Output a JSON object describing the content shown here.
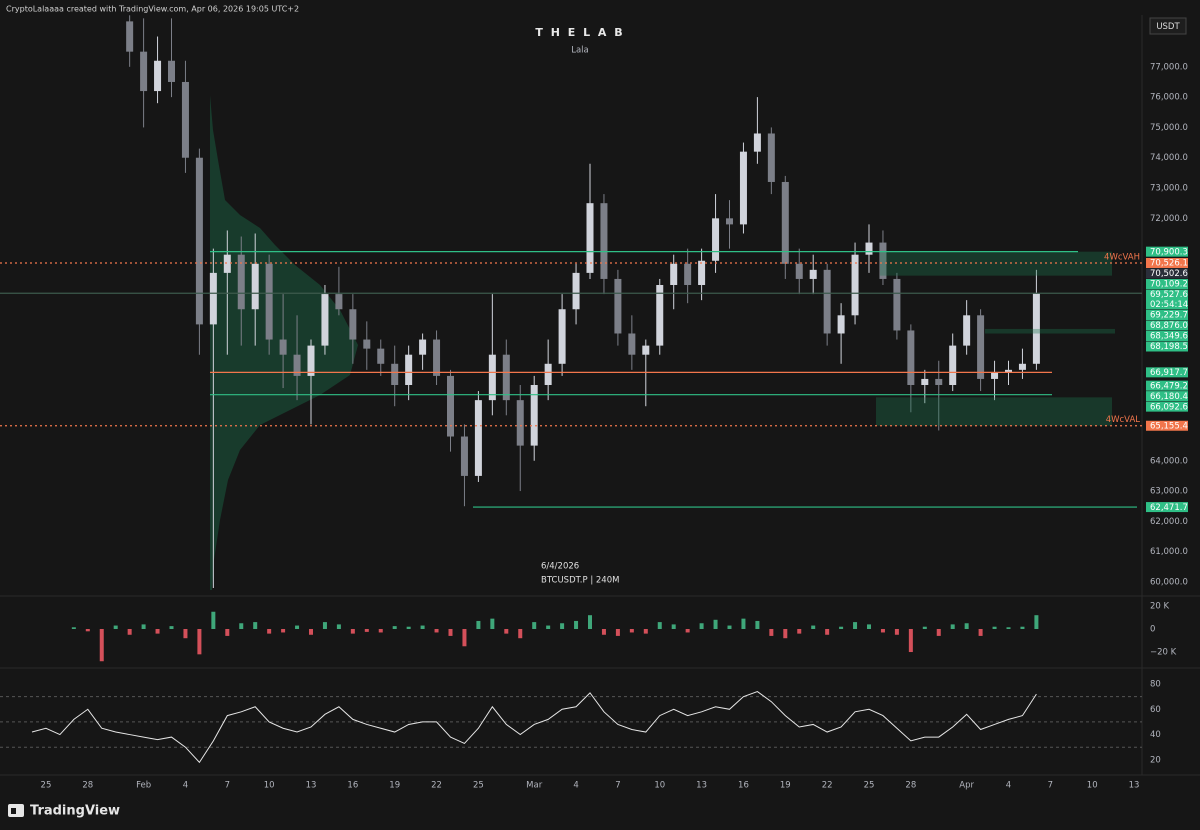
{
  "page": {
    "credit": "CryptoLalaaaa created with TradingView.com, Apr 06, 2026 19:05 UTC+2",
    "brand": "TradingView",
    "currency": "USDT"
  },
  "chart_data": [
    {
      "type": "candlestick",
      "title": "T H E   L A B",
      "subtitle": "Lala",
      "date": "6/4/2026",
      "symbol": "BTCUSDT.P | 240M",
      "up_color": "#d1d4dc",
      "down_color": "#7c7f88",
      "open": [
        null,
        null,
        null,
        null,
        null,
        null,
        null,
        78500,
        77500,
        76200,
        77200,
        76500,
        74000,
        68500,
        70200,
        70800,
        69000,
        70500,
        68000,
        67500,
        66800,
        67800,
        69500,
        69000,
        68000,
        67700,
        67200,
        66500,
        67500,
        68000,
        66800,
        64800,
        63500,
        66000,
        67500,
        66000,
        64500,
        66500,
        67200,
        69000,
        70200,
        72500,
        70000,
        68200,
        67500,
        67800,
        69800,
        70500,
        69800,
        70600,
        72000,
        71800,
        74200,
        74800,
        73200,
        70500,
        70000,
        70300,
        68200,
        68800,
        70800,
        71200,
        70000,
        68300,
        66500,
        66700,
        66500,
        67800,
        68800,
        66700,
        66900,
        67000,
        67200,
        null,
        null,
        null,
        null,
        null,
        null,
        null
      ],
      "high": [
        null,
        null,
        null,
        null,
        null,
        null,
        null,
        78700,
        78600,
        78000,
        78600,
        77200,
        74300,
        71000,
        71600,
        71400,
        71500,
        70800,
        69500,
        68800,
        68000,
        69800,
        70400,
        69500,
        68600,
        68000,
        67800,
        67800,
        68200,
        68300,
        67000,
        65200,
        66300,
        69500,
        68000,
        66500,
        66800,
        68000,
        69500,
        70500,
        73800,
        72800,
        70300,
        68800,
        68000,
        70000,
        70800,
        71000,
        71000,
        72800,
        72600,
        74500,
        76000,
        75000,
        73400,
        71000,
        70800,
        70500,
        69200,
        71200,
        71800,
        71600,
        70200,
        68500,
        67000,
        67300,
        68200,
        69300,
        69000,
        67300,
        67300,
        67700,
        70300,
        null,
        null,
        null,
        null,
        null,
        null,
        null
      ],
      "low": [
        null,
        null,
        null,
        null,
        null,
        null,
        null,
        77000,
        75000,
        75800,
        76000,
        73500,
        67500,
        59800,
        67500,
        67800,
        67800,
        67500,
        66400,
        66000,
        65200,
        67500,
        68800,
        67200,
        67000,
        66800,
        65800,
        66000,
        67000,
        66500,
        64300,
        62500,
        63300,
        65500,
        65500,
        63000,
        64000,
        66000,
        66800,
        68500,
        70000,
        69500,
        67800,
        67000,
        65800,
        67500,
        69000,
        69200,
        69300,
        70200,
        71000,
        71500,
        73800,
        72800,
        70000,
        69500,
        69500,
        67800,
        67200,
        68500,
        70200,
        69800,
        68000,
        65600,
        65900,
        65000,
        66300,
        67500,
        66300,
        66000,
        66500,
        66700,
        67000,
        null,
        null,
        null,
        null,
        null,
        null,
        null
      ],
      "close": [
        null,
        null,
        null,
        null,
        null,
        null,
        null,
        77500,
        76200,
        77200,
        76500,
        74000,
        68500,
        70200,
        70800,
        69000,
        70500,
        68000,
        67500,
        66800,
        67800,
        69500,
        69000,
        68000,
        67700,
        67200,
        66500,
        67500,
        68000,
        66800,
        64800,
        63500,
        66000,
        67500,
        66000,
        64500,
        66500,
        67200,
        69000,
        70200,
        72500,
        70000,
        68200,
        67500,
        67800,
        69800,
        70500,
        69800,
        70600,
        72000,
        71800,
        74200,
        74800,
        73200,
        70500,
        70000,
        70300,
        68200,
        68800,
        70800,
        71200,
        70000,
        68300,
        66500,
        66700,
        66500,
        67800,
        68800,
        66700,
        66900,
        67000,
        67200,
        69527.6,
        null,
        null,
        null,
        null,
        null,
        null,
        null
      ],
      "ylim": [
        59570,
        78710
      ],
      "yticks": [
        {
          "value": 60000,
          "label": "60,000.0"
        },
        {
          "value": 61000,
          "label": "61,000.0"
        },
        {
          "value": 62000,
          "label": "62,000.0"
        },
        {
          "value": 63000,
          "label": "63,000.0"
        },
        {
          "value": 64000,
          "label": "64,000.0"
        },
        {
          "value": 72000,
          "label": "72,000.0"
        },
        {
          "value": 73000,
          "label": "73,000.0"
        },
        {
          "value": 74000,
          "label": "74,000.0"
        },
        {
          "value": 75000,
          "label": "75,000.0"
        },
        {
          "value": 76000,
          "label": "76,000.0"
        },
        {
          "value": 77000,
          "label": "77,000.0"
        }
      ],
      "price_labels": [
        {
          "value": 70900.3,
          "label": "70,900.3",
          "color": "#2fbf86",
          "line": "#2fbf86"
        },
        {
          "value": 70526.1,
          "label": "70,526.1",
          "color": "#f2764c",
          "line": "#f2764c",
          "dash": true,
          "annotation": "4WcVAH"
        },
        {
          "value": 70502.6,
          "label": "70,502.6",
          "color": "#2a2e39"
        },
        {
          "value": 70109.2,
          "label": "70,109.2",
          "color": "#2fbf86"
        },
        {
          "value": 69527.6,
          "label": "69,527.6",
          "countdown": "02:54:14",
          "color": "#2fbf86",
          "line": "#3c5a4c"
        },
        {
          "value": 69229.7,
          "label": "69,229.7",
          "color": "#2fbf86"
        },
        {
          "value": 68876.0,
          "label": "68,876.0",
          "color": "#2fbf86"
        },
        {
          "value": 68349.6,
          "label": "68,349.6",
          "color": "#2fbf86"
        },
        {
          "value": 68198.5,
          "label": "68,198.5",
          "color": "#2fbf86"
        },
        {
          "value": 66917.7,
          "label": "66,917.7",
          "color": "#2fbf86",
          "line": "#f2764c"
        },
        {
          "value": 66479.2,
          "label": "66,479.2",
          "color": "#2fbf86"
        },
        {
          "value": 66180.4,
          "label": "66,180.4",
          "color": "#2fbf86",
          "line": "#2fbf86"
        },
        {
          "value": 66092.6,
          "label": "66,092.6",
          "color": "#2fbf86"
        },
        {
          "value": 65155.4,
          "label": "65,155.4",
          "color": "#f2764c",
          "line": "#f2764c",
          "dash": true,
          "annotation": "4WcVAL"
        },
        {
          "value": 62471.7,
          "label": "62,471.7",
          "color": "#2fbf86",
          "line": "#2fbf86"
        }
      ]
    },
    {
      "type": "bar",
      "up_color": "#3fa77a",
      "down_color": "#d4505a",
      "values": [
        null,
        null,
        null,
        1500,
        -2000,
        -28000,
        3000,
        -5000,
        4000,
        -4000,
        2500,
        -8000,
        -22000,
        15000,
        -6000,
        5000,
        6000,
        -4000,
        -3000,
        3000,
        -5000,
        6000,
        4000,
        -4000,
        -2500,
        -3000,
        2500,
        2000,
        3000,
        -3000,
        -6000,
        -15000,
        7000,
        9000,
        -4000,
        -8000,
        6000,
        3000,
        5000,
        7000,
        12000,
        -5000,
        -6000,
        -3000,
        -4000,
        6000,
        4000,
        -3000,
        5000,
        8000,
        3000,
        9000,
        7000,
        -6000,
        -8000,
        -4000,
        3000,
        -5000,
        2000,
        6000,
        4000,
        -3000,
        -5000,
        -20000,
        2000,
        -6000,
        4000,
        5000,
        -6000,
        2000,
        1500,
        2000,
        12000,
        null,
        null,
        null,
        null,
        null,
        null,
        null
      ],
      "ylim": [
        -33000,
        27800
      ],
      "yticks": [
        {
          "value": 20000,
          "label": "20 K"
        },
        0,
        {
          "value": -20000,
          "label": "−20 K"
        }
      ]
    },
    {
      "type": "line",
      "color": "#e6e6e6",
      "bands": [
        70,
        50,
        30
      ],
      "categories": [
        null,
        "25",
        null,
        null,
        "28",
        null,
        null,
        null,
        "Feb",
        null,
        null,
        "4",
        null,
        null,
        "7",
        null,
        null,
        "10",
        null,
        null,
        "13",
        null,
        null,
        "16",
        null,
        null,
        "19",
        null,
        null,
        "22",
        null,
        null,
        "25",
        null,
        null,
        null,
        "Mar",
        null,
        null,
        "4",
        null,
        null,
        "7",
        null,
        null,
        "10",
        null,
        null,
        "13",
        null,
        null,
        "16",
        null,
        null,
        "19",
        null,
        null,
        "22",
        null,
        null,
        "25",
        null,
        null,
        "28",
        null,
        null,
        null,
        "Apr",
        null,
        null,
        "4",
        null,
        null,
        "7",
        null,
        null,
        "10",
        null,
        null,
        "13"
      ],
      "values": [
        42,
        45,
        40,
        52,
        60,
        45,
        42,
        40,
        38,
        36,
        38,
        30,
        18,
        35,
        55,
        58,
        62,
        50,
        45,
        42,
        46,
        56,
        62,
        52,
        48,
        45,
        42,
        48,
        50,
        50,
        38,
        33,
        45,
        62,
        48,
        40,
        48,
        52,
        60,
        62,
        73,
        58,
        48,
        44,
        42,
        55,
        60,
        55,
        58,
        62,
        60,
        70,
        74,
        66,
        55,
        46,
        48,
        42,
        46,
        58,
        60,
        55,
        45,
        35,
        38,
        38,
        46,
        56,
        44,
        48,
        52,
        55,
        72,
        null,
        null,
        null,
        null,
        null,
        null,
        null
      ],
      "ylim": [
        8,
        89.5
      ],
      "yticks": [
        80,
        60,
        40,
        20
      ]
    }
  ]
}
